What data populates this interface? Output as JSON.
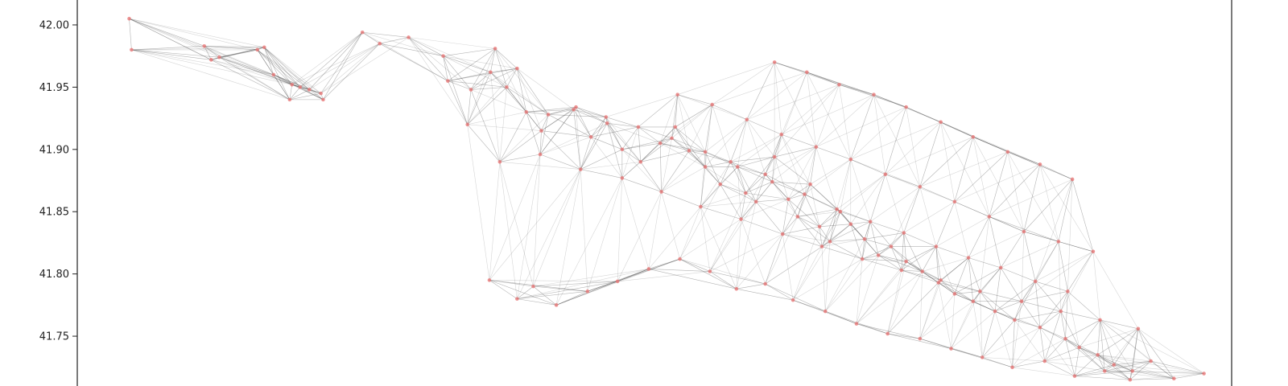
{
  "chart_data": {
    "type": "scatter",
    "title": "",
    "xlabel": "",
    "ylabel": "",
    "ylim": [
      41.71,
      42.02
    ],
    "xlim": [
      0.0,
      1.0
    ],
    "y_ticks": [
      "42.00",
      "41.95",
      "41.90",
      "41.85",
      "41.80",
      "41.75"
    ],
    "y_tick_values": [
      42.0,
      41.95,
      41.9,
      41.85,
      41.8,
      41.75
    ],
    "grid": false,
    "legend": "none",
    "node_color": "#e87878",
    "edge_color": "#444444",
    "highlight_color": "#2e8b2e",
    "x": [
      0.045,
      0.047,
      0.11,
      0.116,
      0.123,
      0.156,
      0.162,
      0.17,
      0.184,
      0.186,
      0.193,
      0.201,
      0.211,
      0.213,
      0.247,
      0.262,
      0.287,
      0.317,
      0.321,
      0.338,
      0.341,
      0.358,
      0.362,
      0.372,
      0.381,
      0.389,
      0.402,
      0.408,
      0.432,
      0.445,
      0.459,
      0.472,
      0.488,
      0.505,
      0.518,
      0.53,
      0.544,
      0.557,
      0.566,
      0.579,
      0.588,
      0.596,
      0.604,
      0.616,
      0.624,
      0.635,
      0.643,
      0.652,
      0.661,
      0.67,
      0.682,
      0.694,
      0.705,
      0.718,
      0.732,
      0.746,
      0.76,
      0.776,
      0.795,
      0.812,
      0.834,
      0.856,
      0.868,
      0.884,
      0.898,
      0.914,
      0.93,
      0.95,
      0.976,
      0.357,
      0.381,
      0.395,
      0.415,
      0.442,
      0.468,
      0.495,
      0.522,
      0.548,
      0.571,
      0.596,
      0.62,
      0.648,
      0.675,
      0.702,
      0.73,
      0.757,
      0.784,
      0.81,
      0.838,
      0.864,
      0.89,
      0.912,
      0.366,
      0.401,
      0.436,
      0.472,
      0.506,
      0.54,
      0.575,
      0.611,
      0.645,
      0.68,
      0.714,
      0.748,
      0.782,
      0.818,
      0.852,
      0.886,
      0.919,
      0.43,
      0.458,
      0.486,
      0.515,
      0.544,
      0.572,
      0.602,
      0.63,
      0.658,
      0.687,
      0.716,
      0.744,
      0.772,
      0.8,
      0.83,
      0.858,
      0.52,
      0.55,
      0.58,
      0.61,
      0.64,
      0.67,
      0.7,
      0.73,
      0.76,
      0.79,
      0.82,
      0.85,
      0.88,
      0.604,
      0.632,
      0.66,
      0.69,
      0.718,
      0.748,
      0.776,
      0.806,
      0.834,
      0.862
    ],
    "y": [
      42.005,
      41.98,
      41.983,
      41.972,
      41.974,
      41.98,
      41.982,
      41.96,
      41.94,
      41.952,
      41.95,
      41.948,
      41.945,
      41.94,
      41.994,
      41.985,
      41.99,
      41.975,
      41.955,
      41.92,
      41.948,
      41.962,
      41.981,
      41.95,
      41.965,
      41.93,
      41.915,
      41.928,
      41.934,
      41.91,
      41.921,
      41.9,
      41.89,
      41.905,
      41.918,
      41.899,
      41.886,
      41.872,
      41.89,
      41.865,
      41.858,
      41.88,
      41.894,
      41.86,
      41.846,
      41.872,
      41.838,
      41.826,
      41.85,
      41.84,
      41.828,
      41.815,
      41.822,
      41.81,
      41.802,
      41.793,
      41.784,
      41.778,
      41.77,
      41.763,
      41.757,
      41.748,
      41.741,
      41.735,
      41.727,
      41.722,
      41.73,
      41.716,
      41.72,
      41.795,
      41.78,
      41.79,
      41.775,
      41.786,
      41.794,
      41.804,
      41.812,
      41.802,
      41.788,
      41.792,
      41.779,
      41.77,
      41.76,
      41.752,
      41.748,
      41.74,
      41.733,
      41.725,
      41.73,
      41.718,
      41.722,
      41.715,
      41.89,
      41.896,
      41.884,
      41.877,
      41.866,
      41.854,
      41.844,
      41.832,
      41.822,
      41.812,
      41.803,
      41.795,
      41.786,
      41.778,
      41.77,
      41.763,
      41.756,
      41.932,
      41.926,
      41.918,
      41.909,
      41.898,
      41.886,
      41.874,
      41.864,
      41.852,
      41.842,
      41.833,
      41.822,
      41.813,
      41.805,
      41.794,
      41.786,
      41.944,
      41.936,
      41.924,
      41.912,
      41.902,
      41.892,
      41.88,
      41.87,
      41.858,
      41.846,
      41.834,
      41.826,
      41.818,
      41.97,
      41.962,
      41.952,
      41.944,
      41.934,
      41.922,
      41.91,
      41.898,
      41.888,
      41.876
    ]
  }
}
